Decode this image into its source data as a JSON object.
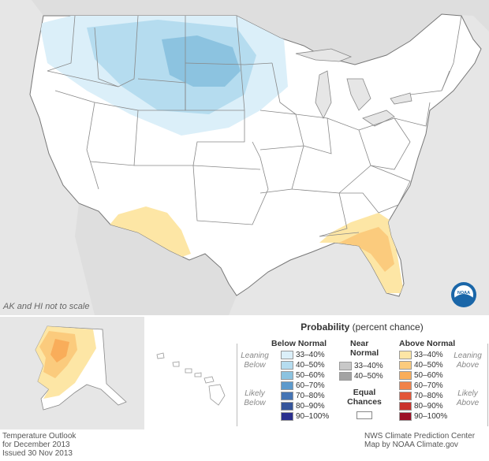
{
  "main_map": {
    "note": "AK and HI not to scale",
    "logo_text": "NOAA"
  },
  "legend": {
    "title": "Probability",
    "title_suffix": "(percent chance)",
    "below": {
      "header": "Below Normal",
      "leaning": [
        "Leaning",
        "Below"
      ],
      "likely": [
        "Likely",
        "Below"
      ],
      "items": [
        {
          "label": "33–40%",
          "color": "#dbeff9"
        },
        {
          "label": "40–50%",
          "color": "#b5dcef"
        },
        {
          "label": "50–60%",
          "color": "#8cc3e0"
        },
        {
          "label": "60–70%",
          "color": "#5d9acc"
        },
        {
          "label": "70–80%",
          "color": "#4574b4"
        },
        {
          "label": "80–90%",
          "color": "#36559b"
        },
        {
          "label": "90–100%",
          "color": "#2a2f8e"
        }
      ]
    },
    "near": {
      "header": [
        "Near",
        "Normal"
      ],
      "items": [
        {
          "label": "33–40%",
          "color": "#c8c8c8"
        },
        {
          "label": "40–50%",
          "color": "#a3a3a3"
        }
      ],
      "equal": [
        "Equal",
        "Chances"
      ]
    },
    "above": {
      "header": "Above Normal",
      "leaning": [
        "Leaning",
        "Above"
      ],
      "likely": [
        "Likely",
        "Above"
      ],
      "items": [
        {
          "label": "33–40%",
          "color": "#fde6a5"
        },
        {
          "label": "40–50%",
          "color": "#fbcb7d"
        },
        {
          "label": "50–60%",
          "color": "#f9ad5a"
        },
        {
          "label": "60–70%",
          "color": "#f1824a"
        },
        {
          "label": "70–80%",
          "color": "#e25638"
        },
        {
          "label": "80–90%",
          "color": "#c9322c"
        },
        {
          "label": "90–100%",
          "color": "#9c1026"
        }
      ]
    }
  },
  "footer": {
    "left": [
      "Temperature Outlook",
      "for December 2013",
      "Issued 30 Nov 2013"
    ],
    "right": [
      "NWS Climate Prediction Center",
      "Map by NOAA Climate.gov"
    ]
  }
}
